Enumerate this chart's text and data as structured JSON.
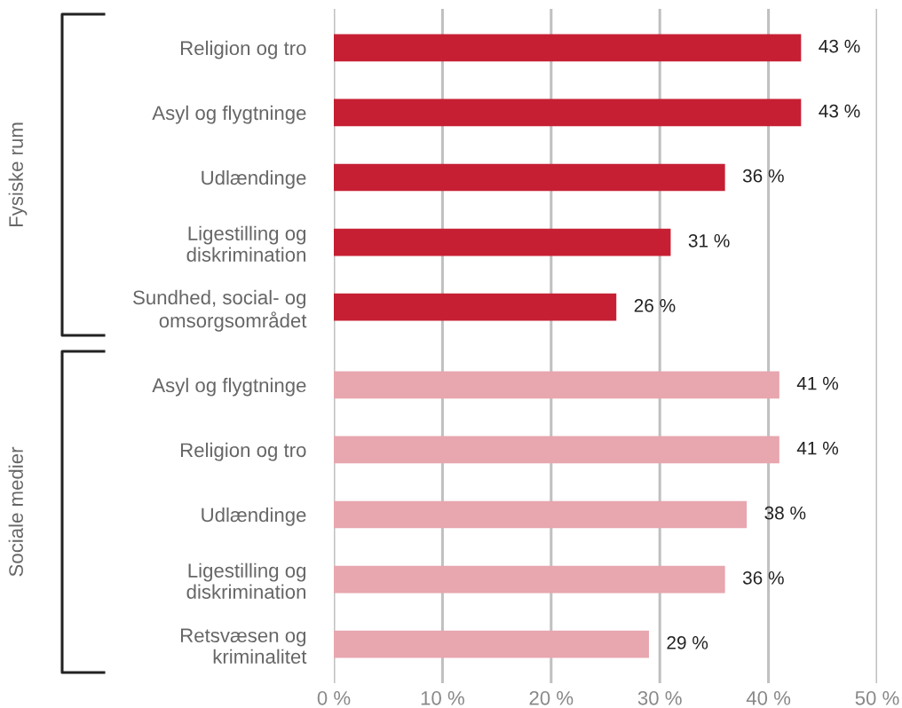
{
  "chart_data": [
    {
      "type": "bar",
      "orientation": "horizontal",
      "ylabel": "Fysiske rum",
      "categories": [
        "Religion og tro",
        "Asyl og flygtninge",
        "Udlændinge",
        "Ligestilling og\ndiskrimination",
        "Sundhed, social- og\nomsorgsområdet"
      ],
      "values": [
        43,
        43,
        36,
        31,
        26
      ],
      "value_labels": [
        "43 %",
        "43 %",
        "36 %",
        "31 %",
        "26 %"
      ],
      "color": "#c61f33",
      "xlim": [
        0,
        50
      ],
      "xticks": [
        {
          "value": 0,
          "label": null
        },
        {
          "value": 10,
          "label": null
        },
        {
          "value": 20,
          "label": null
        },
        {
          "value": 30,
          "label": null
        },
        {
          "value": 40,
          "label": null
        },
        {
          "value": 50,
          "label": null
        }
      ],
      "grid": "x",
      "tick_labels": "y"
    },
    {
      "type": "bar",
      "orientation": "horizontal",
      "ylabel": "Sociale medier",
      "categories": [
        "Asyl og flygtninge",
        "Religion og tro",
        "Udlændinge",
        "Ligestilling og\ndiskrimination",
        "Retsvæsen og\nkriminalitet"
      ],
      "values": [
        41,
        41,
        38,
        36,
        29
      ],
      "value_labels": [
        "41 %",
        "41 %",
        "38 %",
        "36 %",
        "29 %"
      ],
      "color": "#e8a6ae",
      "xlim": [
        0,
        50
      ],
      "xticks": [
        {
          "value": 0,
          "label": "0 %"
        },
        {
          "value": 10,
          "label": "10 %"
        },
        {
          "value": 20,
          "label": "20 %"
        },
        {
          "value": 30,
          "label": "30 %"
        },
        {
          "value": 40,
          "label": "40 %"
        },
        {
          "value": 50,
          "label": "50 %"
        }
      ],
      "grid": "x"
    }
  ]
}
